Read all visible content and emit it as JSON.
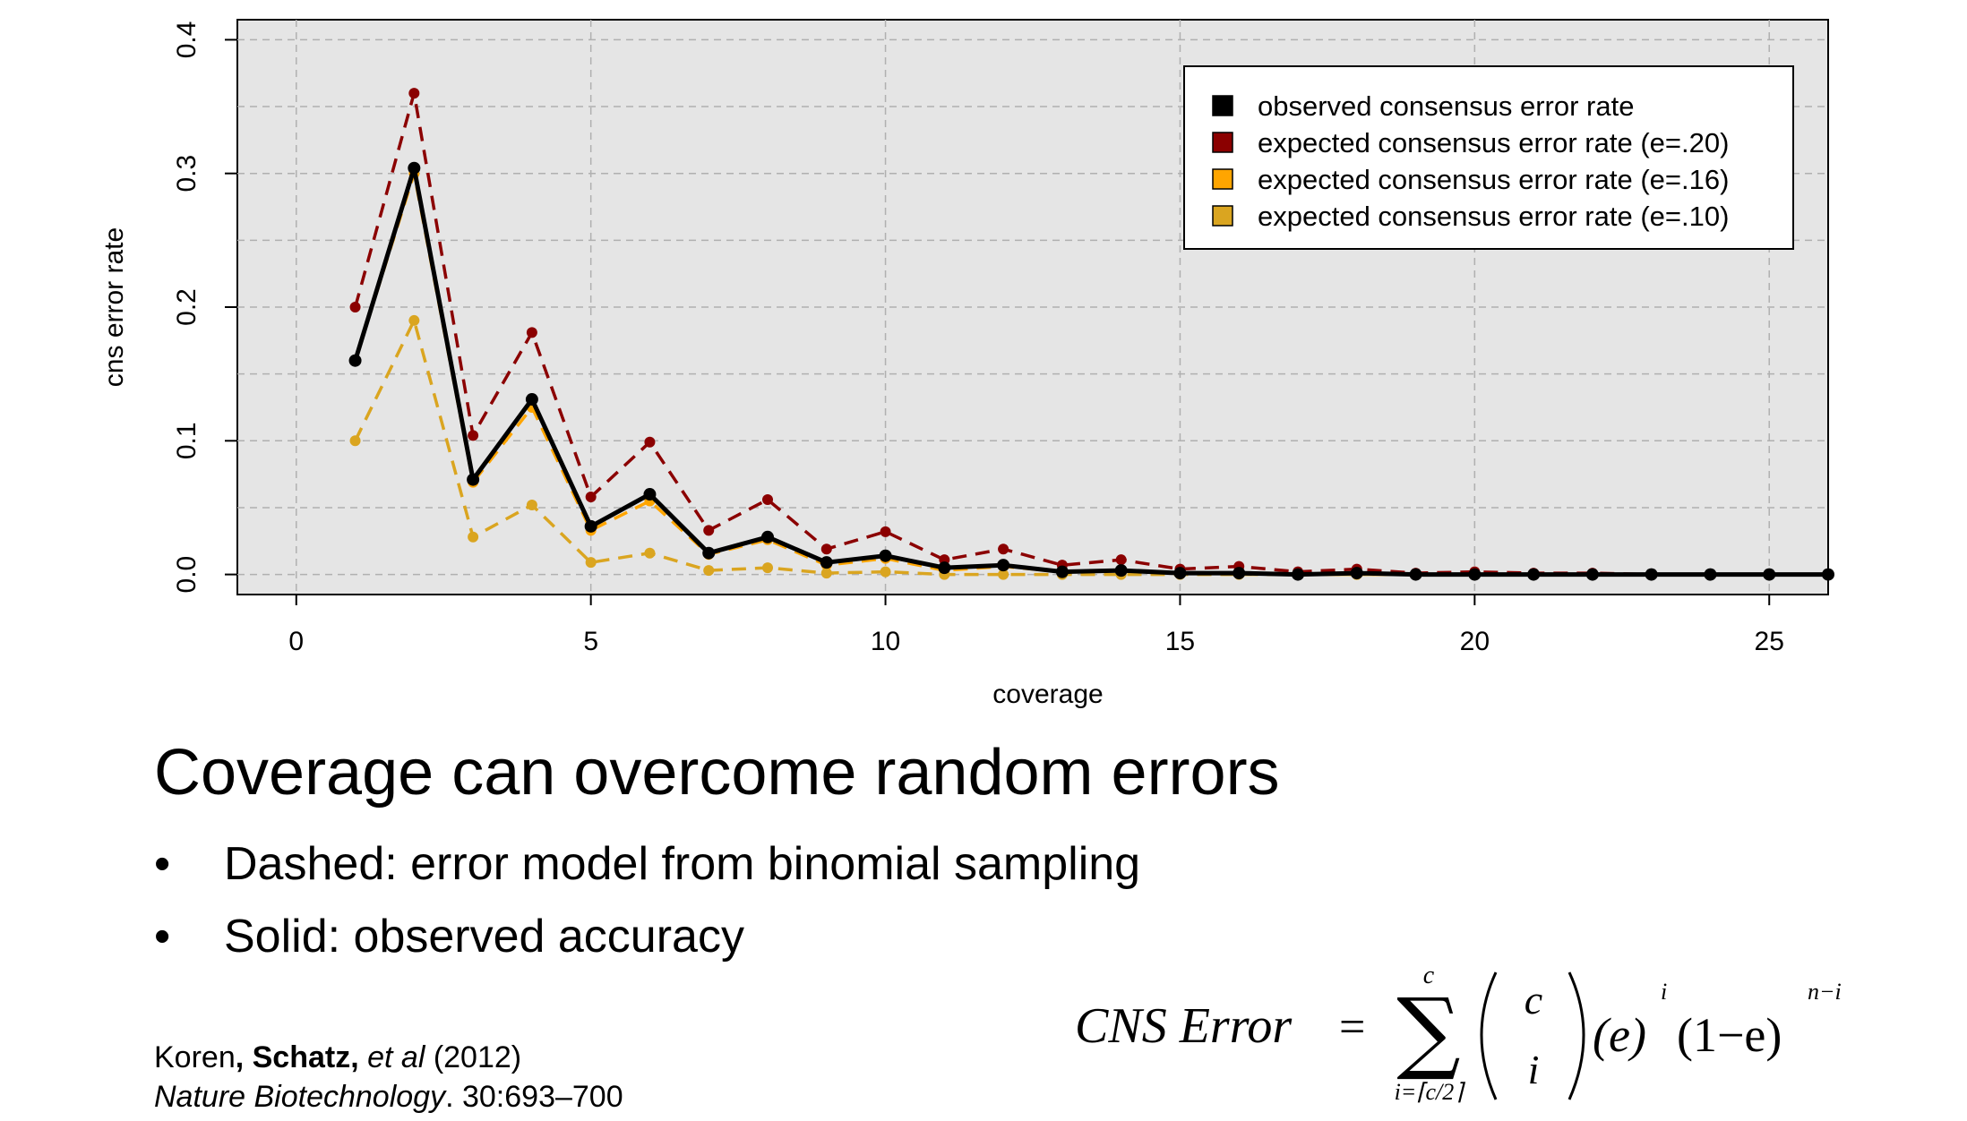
{
  "chart_data": {
    "type": "line",
    "xlabel": "coverage",
    "ylabel": "cns error rate",
    "xlim": [
      -1,
      26
    ],
    "ylim": [
      -0.015,
      0.415
    ],
    "xticks": [
      "0",
      "5",
      "10",
      "15",
      "20",
      "25"
    ],
    "yticks": [
      "0.0",
      "0.1",
      "0.2",
      "0.3",
      "0.4"
    ],
    "grid": true,
    "legend_position": "top-right",
    "x": [
      1,
      2,
      3,
      4,
      5,
      6,
      7,
      8,
      9,
      10,
      11,
      12,
      13,
      14,
      15,
      16,
      17,
      18,
      19,
      20,
      21,
      22,
      23,
      24,
      25,
      26
    ],
    "series": [
      {
        "name": "observed consensus error rate",
        "color": "#000000",
        "style": "solid",
        "values": [
          0.16,
          0.304,
          0.071,
          0.131,
          0.036,
          0.06,
          0.016,
          0.028,
          0.009,
          0.014,
          0.005,
          0.007,
          0.002,
          0.003,
          0.001,
          0.001,
          0.0,
          0.001,
          0.0,
          0.0,
          0.0,
          0.0,
          0.0,
          0.0,
          0.0,
          0.0
        ]
      },
      {
        "name": "expected consensus error rate (e=.20)",
        "color": "#8B0000",
        "style": "dashed",
        "values": [
          0.2,
          0.36,
          0.104,
          0.181,
          0.058,
          0.099,
          0.033,
          0.056,
          0.019,
          0.032,
          0.011,
          0.019,
          0.007,
          0.011,
          0.004,
          0.006,
          0.002,
          0.004,
          0.001,
          0.002,
          0.001,
          0.001,
          0.0,
          0.0,
          0.0,
          0.0
        ]
      },
      {
        "name": "expected consensus error rate (e=.16)",
        "color": "#FFA500",
        "style": "dashed",
        "values": [
          0.16,
          0.3,
          0.069,
          0.125,
          0.033,
          0.055,
          0.015,
          0.026,
          0.007,
          0.012,
          0.003,
          0.006,
          0.002,
          0.003,
          0.001,
          0.001,
          0.0,
          0.0,
          0.0,
          0.0,
          0.0,
          0.0,
          0.0,
          0.0,
          0.0,
          0.0
        ]
      },
      {
        "name": "expected consensus error rate (e=.10)",
        "color": "#DAA520",
        "style": "dashed",
        "values": [
          0.1,
          0.19,
          0.028,
          0.052,
          0.009,
          0.016,
          0.003,
          0.005,
          0.001,
          0.002,
          0.0,
          0.0,
          0.0,
          0.0,
          0.0,
          0.0,
          0.0,
          0.0,
          0.0,
          0.0,
          0.0,
          0.0,
          0.0,
          0.0,
          0.0,
          0.0
        ]
      }
    ]
  },
  "slide": {
    "title": "Coverage can overcome random errors",
    "bullets": [
      {
        "marker": "•",
        "text": "Dashed: error model from binomial sampling"
      },
      {
        "marker": "•",
        "text": "Solid: observed accuracy"
      }
    ],
    "citation": {
      "authors_a": "Koren",
      "authors_b": ", Schatz, ",
      "authors_c": "et al",
      "year": " (2012)",
      "journal": "Nature Biotechnology",
      "ref": ". 30:693–700"
    }
  },
  "formula": {
    "lhs": "CNS Error",
    "eq": "=",
    "sum_upper": "c",
    "sum_lower": "i=⌈c/2⌉",
    "binom_top": "c",
    "binom_bottom": "i",
    "term1": "(e)",
    "term1_exp": "i",
    "term2": "(1−e)",
    "term2_exp": "n−i"
  }
}
